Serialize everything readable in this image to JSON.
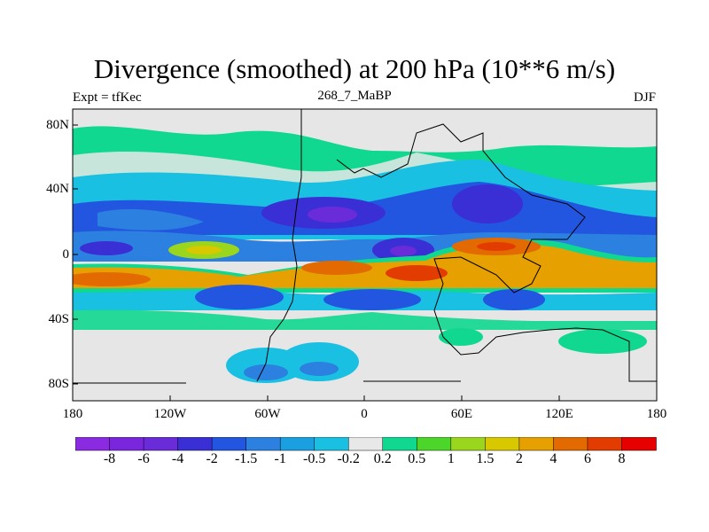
{
  "header": {
    "title": "Divergence (smoothed) at 200 hPa (10**6 m/s)",
    "left": "Expt = tfKec",
    "center": "268_7_MaBP",
    "right": "DJF"
  },
  "axes": {
    "lat_labels": [
      "80N",
      "40N",
      "0",
      "40S",
      "80S"
    ],
    "lon_labels": [
      "180",
      "120W",
      "60W",
      "0",
      "60E",
      "120E",
      "180"
    ]
  },
  "colorbar": {
    "labels": [
      "-8",
      "-6",
      "-4",
      "-2",
      "-1.5",
      "-1",
      "-0.5",
      "-0.2",
      "0.2",
      "0.5",
      "1",
      "1.5",
      "2",
      "4",
      "6",
      "8"
    ],
    "colors": [
      "#8a2be2",
      "#7a26dd",
      "#6a2bd9",
      "#3a2fd4",
      "#2255e0",
      "#2b80e0",
      "#1aa0e0",
      "#19c0e2",
      "#e8e8e8",
      "#10d890",
      "#4cd62a",
      "#9ad61e",
      "#d7c800",
      "#e6a000",
      "#e36a00",
      "#e23c00",
      "#e60000"
    ]
  },
  "colors": {
    "missing": "#e6e6e6",
    "outline": "#000000"
  }
}
